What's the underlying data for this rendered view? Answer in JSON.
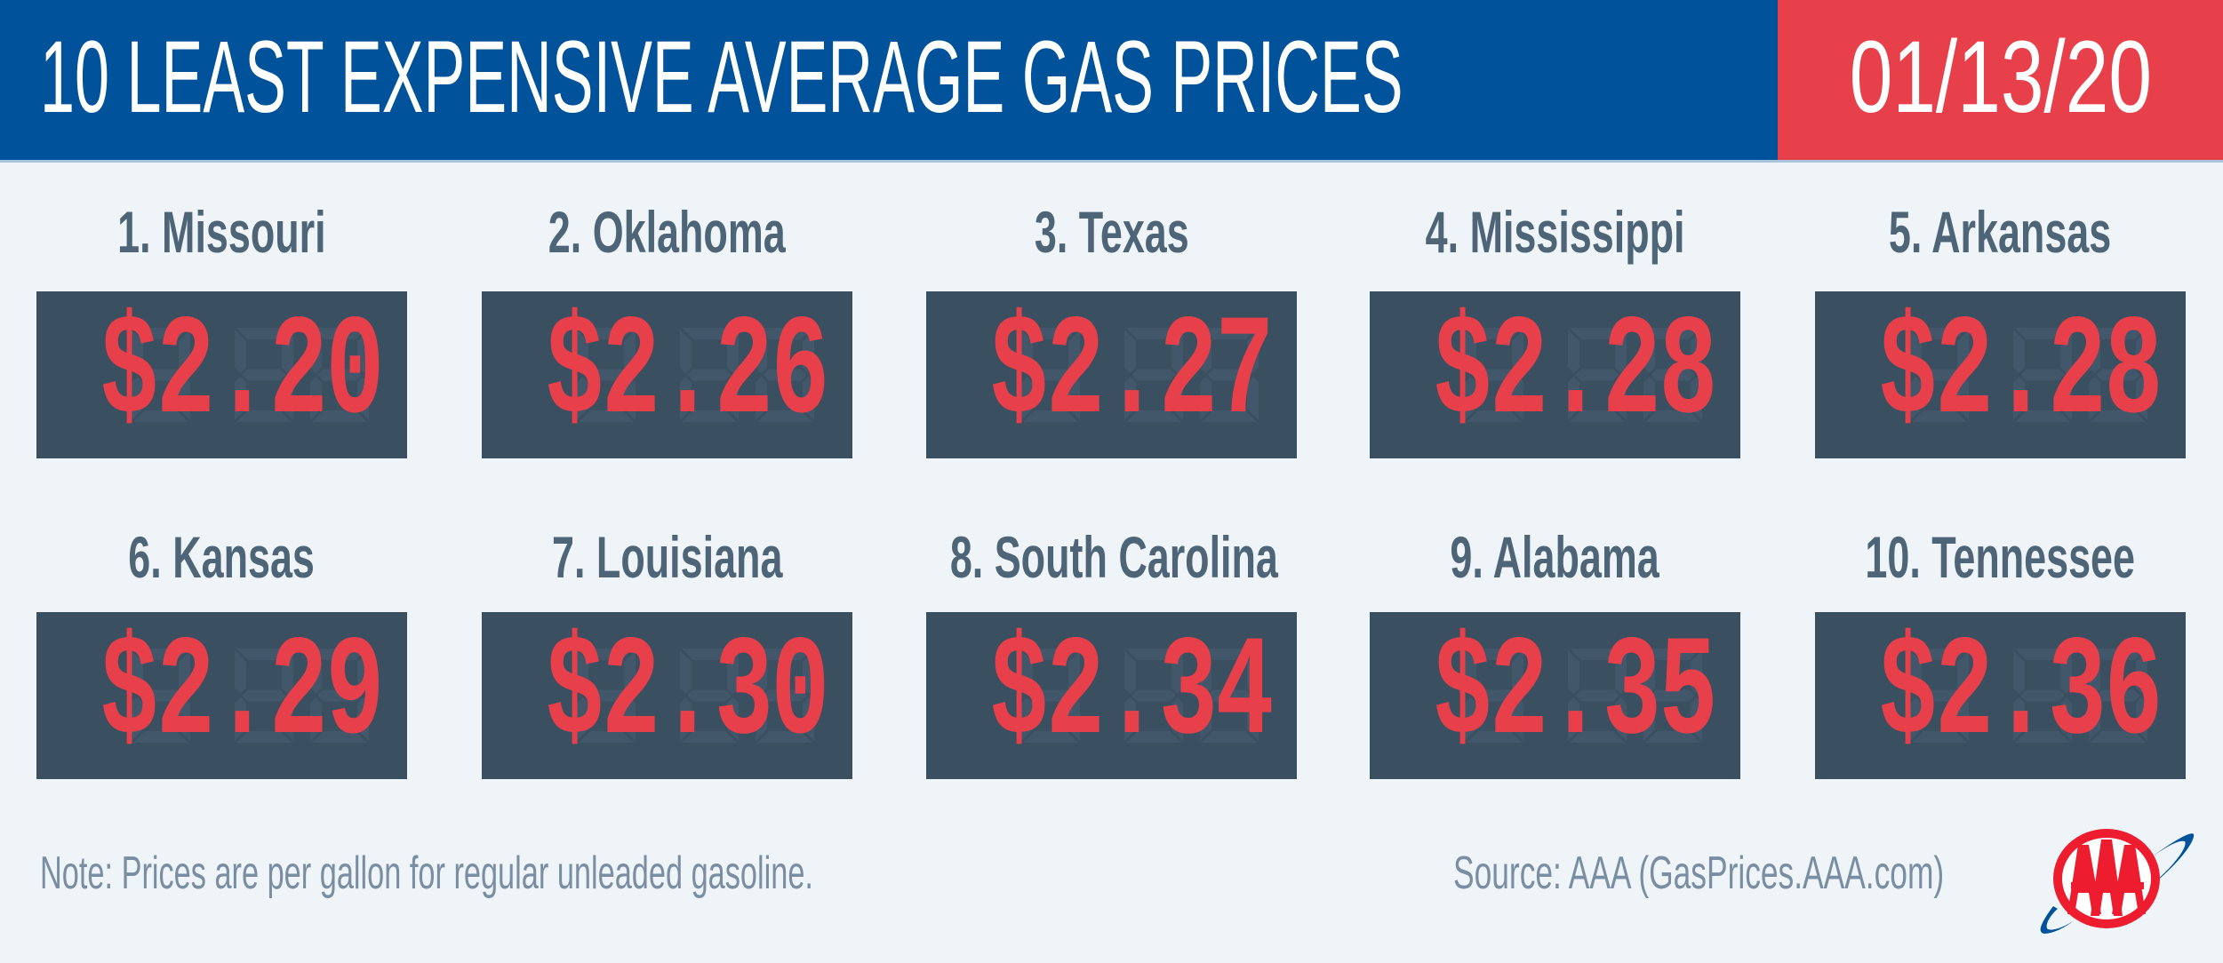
{
  "header": {
    "title": "10 LEAST EXPENSIVE AVERAGE GAS PRICES",
    "date": "01/13/20"
  },
  "colors": {
    "header_blue": "#00529b",
    "header_red": "#e8404b",
    "background": "#eff4f9",
    "display_bg": "#3a4f60",
    "digit_red": "#e8404b",
    "name_text": "#4e6577"
  },
  "items": [
    {
      "label": "1. Missouri",
      "price": "$2.20"
    },
    {
      "label": "2. Oklahoma",
      "price": "$2.26"
    },
    {
      "label": "3. Texas",
      "price": "$2.27"
    },
    {
      "label": "4. Mississippi",
      "price": "$2.28"
    },
    {
      "label": "5. Arkansas",
      "price": "$2.28"
    },
    {
      "label": "6. Kansas",
      "price": "$2.29"
    },
    {
      "label": "7. Louisiana",
      "price": "$2.30"
    },
    {
      "label": "8. South Carolina",
      "price": "$2.34"
    },
    {
      "label": "9. Alabama",
      "price": "$2.35"
    },
    {
      "label": "10. Tennessee",
      "price": "$2.36"
    }
  ],
  "footer": {
    "note": "Note: Prices are per gallon for regular unleaded gasoline.",
    "source": "Source: AAA (GasPrices.AAA.com)",
    "logo_text": "AAA"
  }
}
